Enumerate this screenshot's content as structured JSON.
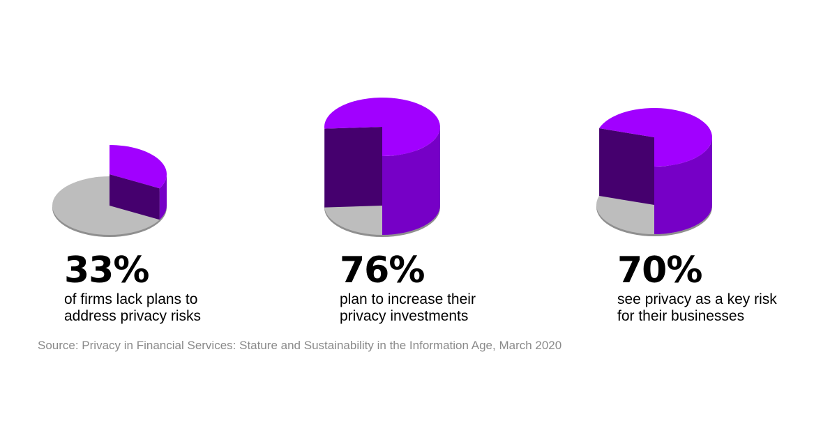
{
  "chart_data": [
    {
      "type": "pie",
      "values": [
        33,
        67
      ],
      "highlight_percent": 33,
      "label": "33%",
      "description": [
        "of firms lack plans to",
        "address privacy risks"
      ]
    },
    {
      "type": "pie",
      "values": [
        76,
        24
      ],
      "highlight_percent": 76,
      "label": "76%",
      "description": [
        "plan to increase their",
        "privacy investments"
      ]
    },
    {
      "type": "pie",
      "values": [
        70,
        30
      ],
      "highlight_percent": 70,
      "label": "70%",
      "description": [
        "see privacy as a key risk",
        "for their businesses"
      ]
    }
  ],
  "colors": {
    "highlight_top": "#a100ff",
    "highlight_side": "#7600c6",
    "highlight_cut": "#45006e",
    "remainder": "#bdbdbd",
    "remainder_edge": "#8f8f8f"
  },
  "source": "Source: Privacy in Financial Services: Stature and Sustainability in the Information Age, March 2020"
}
